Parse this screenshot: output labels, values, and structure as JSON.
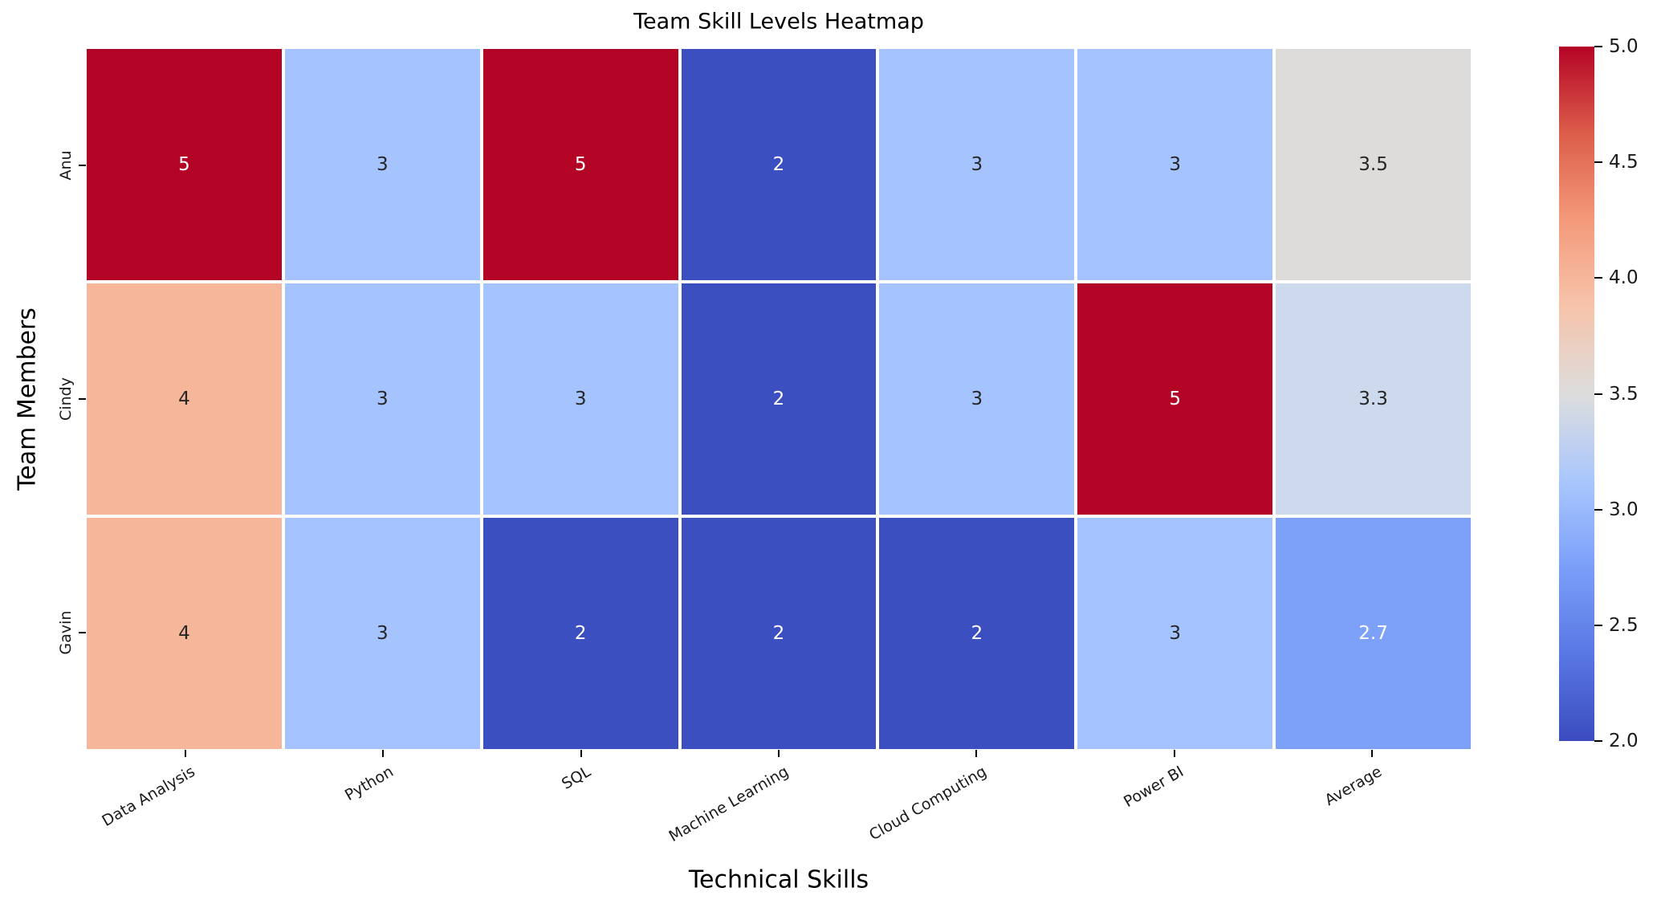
{
  "chart_data": {
    "type": "heatmap",
    "title": "Team Skill Levels Heatmap",
    "xlabel": "Technical Skills",
    "ylabel": "Team Members",
    "columns": [
      "Data Analysis",
      "Python",
      "SQL",
      "Machine Learning",
      "Cloud Computing",
      "Power BI",
      "Average"
    ],
    "rows": [
      "Anu",
      "Cindy",
      "Gavin"
    ],
    "values": [
      [
        5,
        3,
        5,
        2,
        3,
        3,
        3.5
      ],
      [
        4,
        3,
        3,
        2,
        3,
        5,
        3.3
      ],
      [
        4,
        3,
        2,
        2,
        2,
        3,
        2.7
      ]
    ],
    "cell_labels": [
      [
        "5",
        "3",
        "5",
        "2",
        "3",
        "3",
        "3.5"
      ],
      [
        "4",
        "3",
        "3",
        "2",
        "3",
        "5",
        "3.3"
      ],
      [
        "4",
        "3",
        "2",
        "2",
        "2",
        "3",
        "2.7"
      ]
    ],
    "cell_colors": [
      [
        "#b40426",
        "#a5c3fe",
        "#b40426",
        "#3c4fc1",
        "#a5c3fe",
        "#a5c3fe",
        "#dddcdb"
      ],
      [
        "#f6b69a",
        "#a5c3fe",
        "#a5c3fe",
        "#3c4fc1",
        "#a5c3fe",
        "#b40426",
        "#cdd9ec"
      ],
      [
        "#f6b69a",
        "#a5c3fe",
        "#3c4fc1",
        "#3c4fc1",
        "#3c4fc1",
        "#a5c3fe",
        "#7da1f8"
      ]
    ],
    "cell_text_colors": [
      [
        "#ffffff",
        "#262626",
        "#ffffff",
        "#ffffff",
        "#262626",
        "#262626",
        "#262626"
      ],
      [
        "#262626",
        "#262626",
        "#262626",
        "#ffffff",
        "#262626",
        "#ffffff",
        "#262626"
      ],
      [
        "#262626",
        "#262626",
        "#ffffff",
        "#ffffff",
        "#ffffff",
        "#262626",
        "#ffffff"
      ]
    ],
    "colormap": "coolwarm",
    "vmin": 2.0,
    "vmax": 5.0,
    "grid": false,
    "legend_position": "colorbar-right",
    "colorbar_ticks": [
      "5.0",
      "4.5",
      "4.0",
      "3.5",
      "3.0",
      "2.5",
      "2.0"
    ],
    "colorbar_gradient_top_to_bottom": [
      {
        "pos": 0,
        "color": "#b40426"
      },
      {
        "pos": 12.5,
        "color": "#dc5d4a"
      },
      {
        "pos": 25,
        "color": "#f49a7b"
      },
      {
        "pos": 37.5,
        "color": "#f6c4ab"
      },
      {
        "pos": 50,
        "color": "#dddddd"
      },
      {
        "pos": 62.5,
        "color": "#aac7fd"
      },
      {
        "pos": 75,
        "color": "#7b9ff9"
      },
      {
        "pos": 87.5,
        "color": "#5977e3"
      },
      {
        "pos": 100,
        "color": "#3b4cc0"
      }
    ]
  }
}
